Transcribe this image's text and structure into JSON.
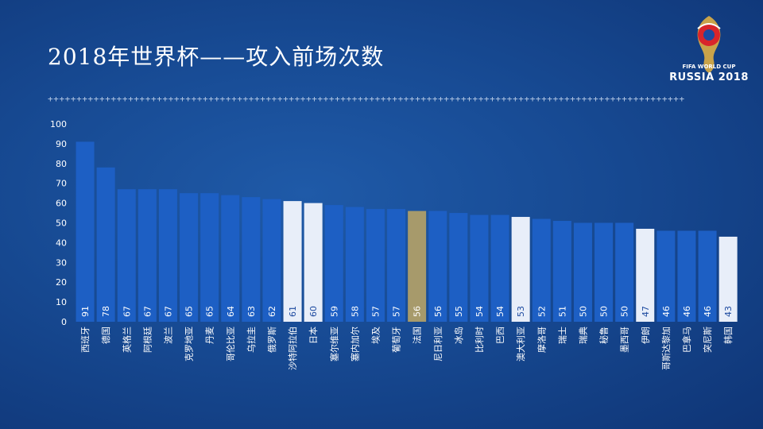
{
  "title": "2018年世界杯——攻入前场次数",
  "divider": "+++++++++++++++++++++++++++++++++++++++++++++++++++++++++++++++++++++++++++++++++++++++++++++++++++++++++++++++",
  "logo": {
    "line1": "FIFA WORLD CUP",
    "line2": "RUSSIA 2018"
  },
  "colors": {
    "bar_default": "#1d5fc4",
    "bar_highlight": "#e8eef9",
    "bar_france": "#a79a6b",
    "axis_text": "#ffffff"
  },
  "chart_data": {
    "type": "bar",
    "title": "2018年世界杯——攻入前场次数",
    "ylim": [
      0,
      100
    ],
    "yticks": [
      0,
      10,
      20,
      30,
      40,
      50,
      60,
      70,
      80,
      90,
      100
    ],
    "categories": [
      "西班牙",
      "德国",
      "英格兰",
      "阿根廷",
      "波兰",
      "克罗地亚",
      "丹麦",
      "哥伦比亚",
      "乌拉圭",
      "俄罗斯",
      "沙特阿拉伯",
      "日本",
      "塞尔维亚",
      "塞内加尔",
      "埃及",
      "葡萄牙",
      "法国",
      "尼日利亚",
      "冰岛",
      "比利时",
      "巴西",
      "澳大利亚",
      "摩洛哥",
      "瑞士",
      "瑞典",
      "秘鲁",
      "墨西哥",
      "伊朗",
      "哥斯达黎加",
      "巴拿马",
      "突尼斯",
      "韩国"
    ],
    "values": [
      91,
      78,
      67,
      67,
      67,
      65,
      65,
      64,
      63,
      62,
      61,
      60,
      59,
      58,
      57,
      57,
      56,
      56,
      55,
      54,
      54,
      53,
      52,
      51,
      50,
      50,
      50,
      47,
      46,
      46,
      46,
      43
    ],
    "highlight": [
      "沙特阿拉伯",
      "日本",
      "澳大利亚",
      "伊朗",
      "韩国"
    ],
    "special": [
      "法国"
    ]
  }
}
